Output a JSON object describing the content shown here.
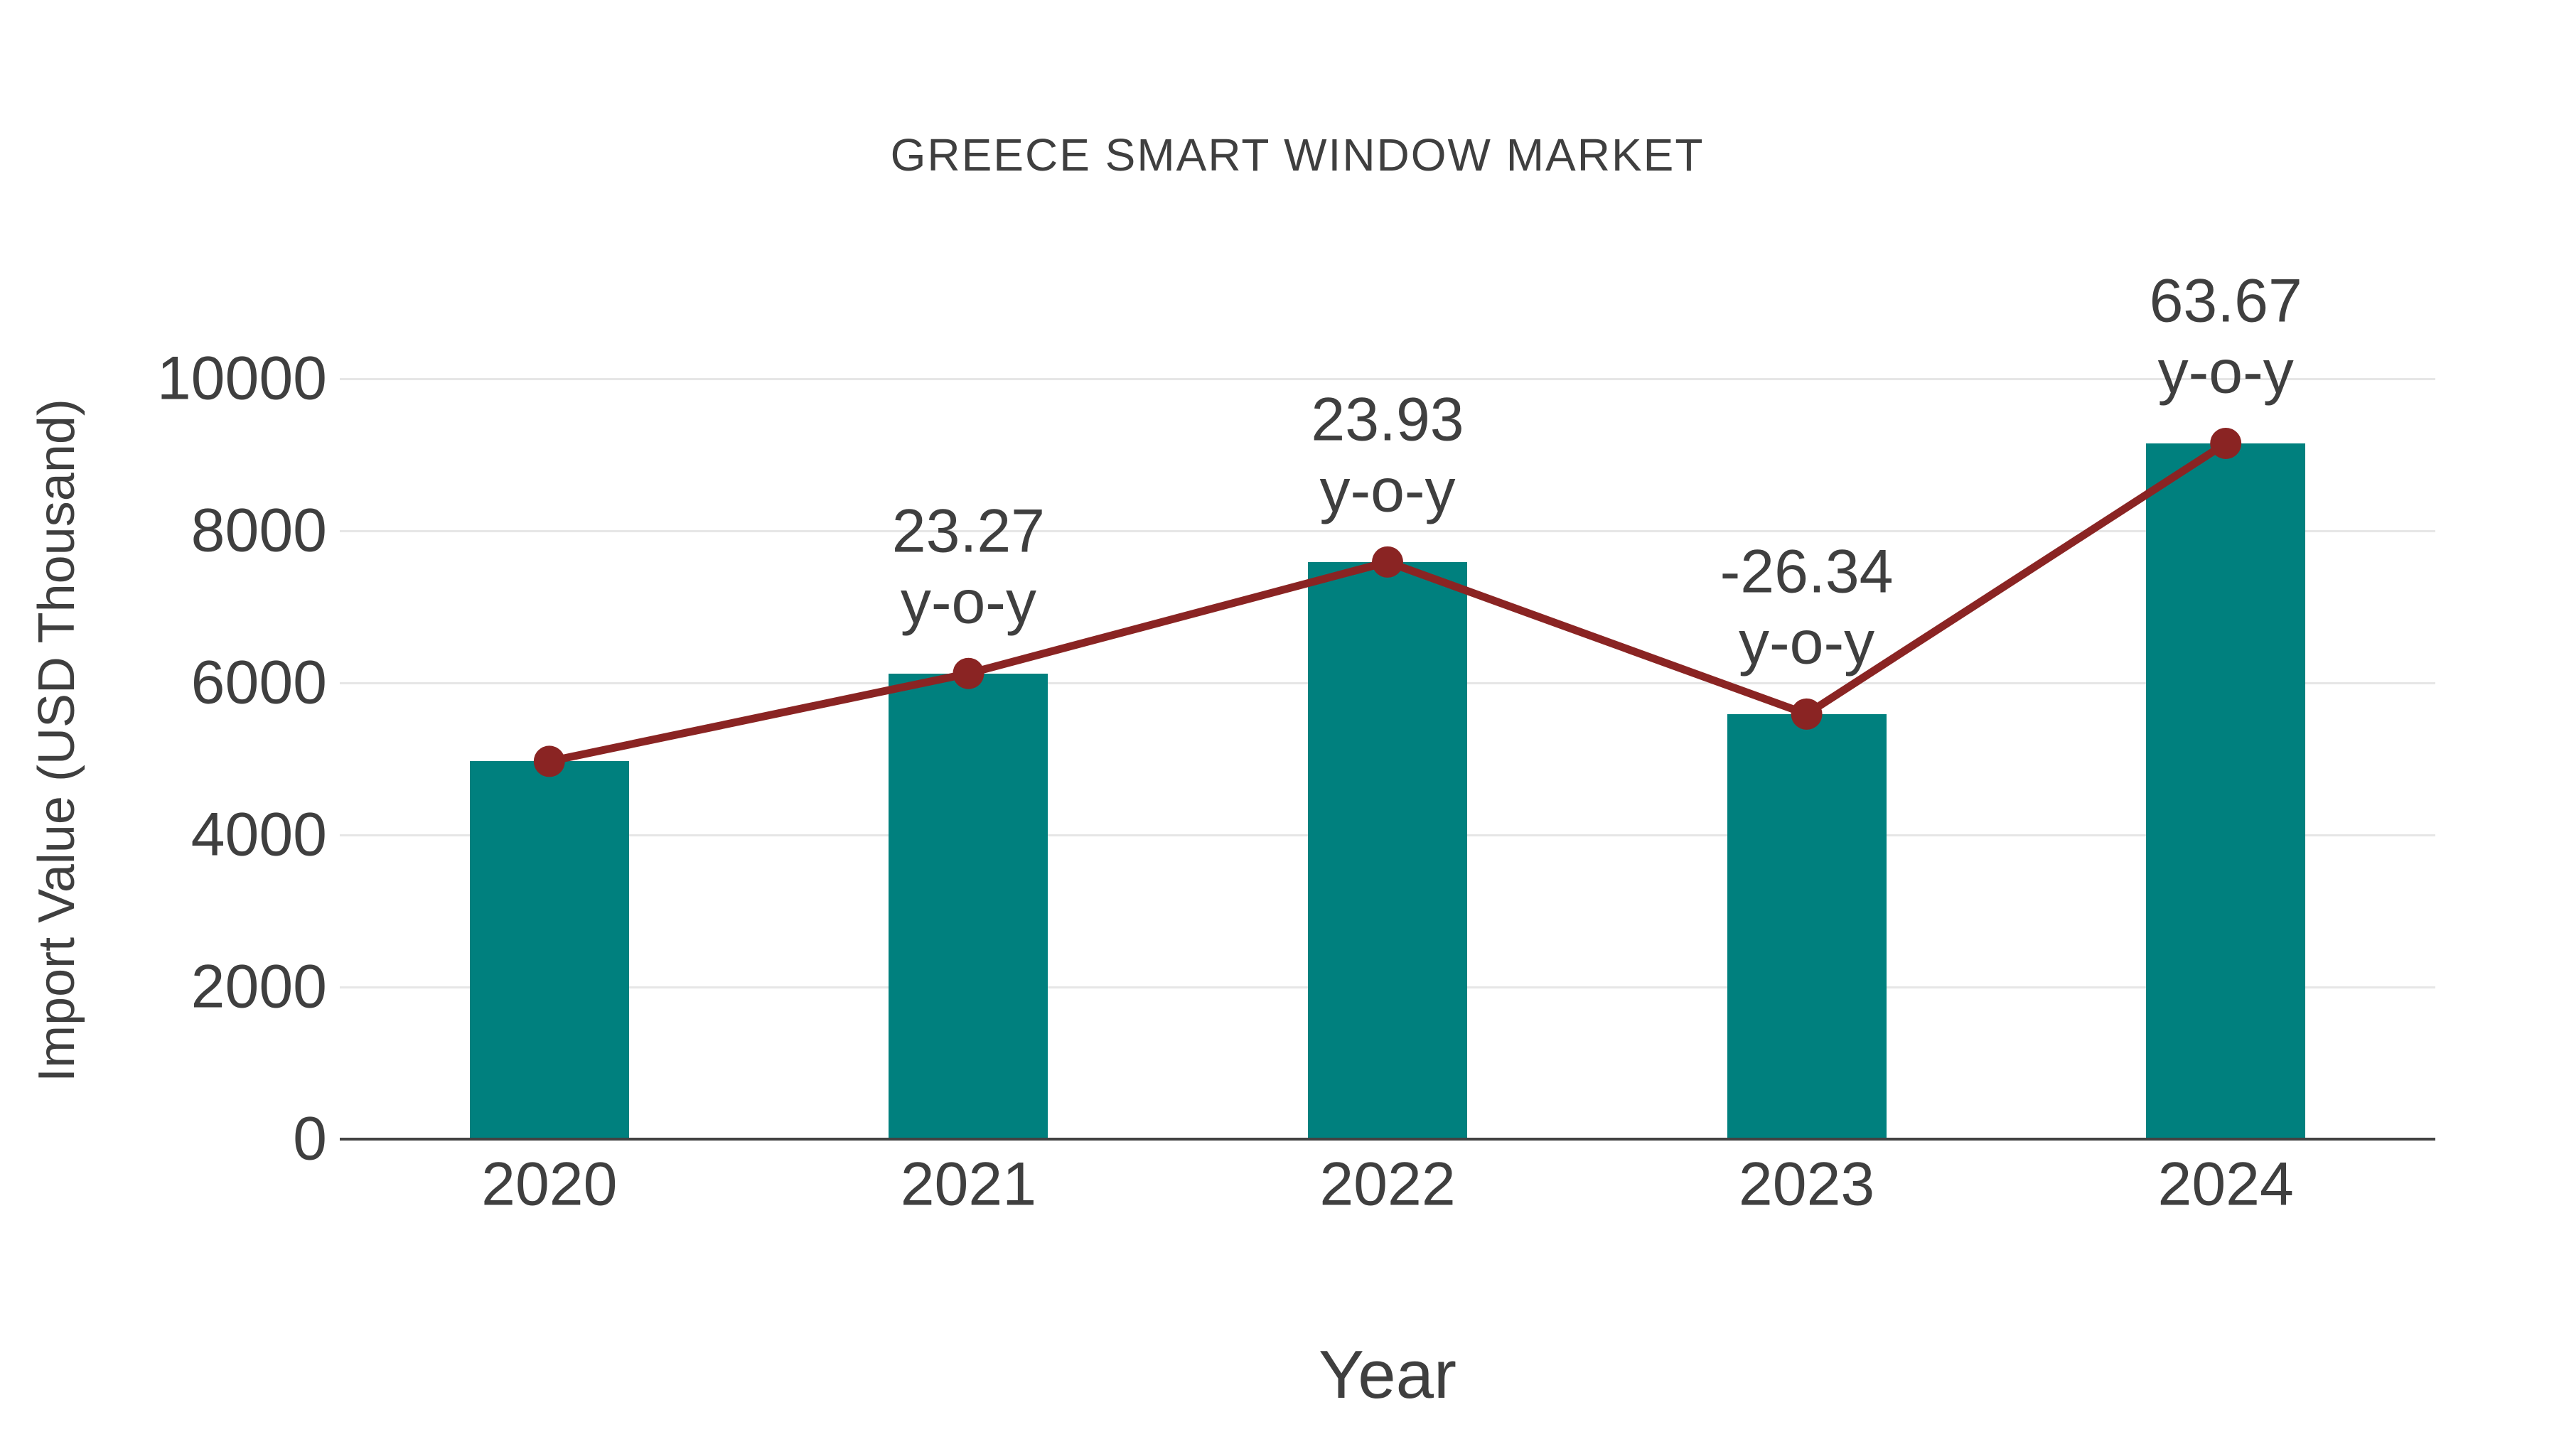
{
  "title": "GREECE SMART WINDOW MARKET",
  "chart_data": {
    "type": "bar",
    "title": "GREECE SMART WINDOW MARKET",
    "xlabel": "Year",
    "ylabel": "Import Value (USD Thousand)",
    "categories": [
      "2020",
      "2021",
      "2022",
      "2023",
      "2024"
    ],
    "series": [
      {
        "name": "Import Value (USD Thousand)",
        "type": "bar",
        "values": [
          4968,
          6124,
          7590,
          5590,
          9150
        ]
      },
      {
        "name": "y-o-y growth (%)",
        "type": "line",
        "values": [
          4968,
          6124,
          7590,
          5590,
          9150
        ],
        "point_labels": [
          "",
          "23.27",
          "23.93",
          "-26.34",
          "63.67"
        ],
        "label_suffix": "y-o-y"
      }
    ],
    "ylim": [
      0,
      10000
    ],
    "yticks": [
      0,
      2000,
      4000,
      6000,
      8000,
      10000
    ],
    "grid": true,
    "legend_position": "none"
  },
  "colors": {
    "background": "#FFFFFF",
    "bar": "#00807E",
    "line": "#8A2423",
    "marker": "#8A2423",
    "text": "#3F3F3F",
    "grid": "#E6E6E6",
    "axis": "#424242"
  }
}
